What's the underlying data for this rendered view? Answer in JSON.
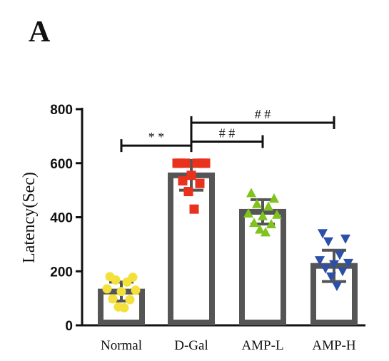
{
  "panel_label": "A",
  "chart_data": {
    "type": "bar",
    "ylabel": "Latency(Sec)",
    "xlabel": "",
    "ylim": [
      0,
      800
    ],
    "yticks": [
      0,
      200,
      400,
      600,
      800
    ],
    "categories": [
      "Normal",
      "D-Gal",
      "AMP-L",
      "AMP-H"
    ],
    "values": [
      125,
      555,
      420,
      220
    ],
    "sd": [
      35,
      55,
      45,
      58
    ],
    "point_colors": [
      "#f3e03a",
      "#e8321e",
      "#7fc31c",
      "#2c4fa8"
    ],
    "point_markers": [
      "circle",
      "square",
      "triangle-up",
      "triangle-down"
    ],
    "bar_color": "#555555",
    "points": [
      [
        180,
        178,
        168,
        160,
        135,
        130,
        125,
        98,
        95,
        68,
        65
      ],
      [
        600,
        600,
        600,
        600,
        600,
        600,
        555,
        535,
        525,
        495,
        430
      ],
      [
        490,
        470,
        450,
        440,
        415,
        410,
        405,
        380,
        375,
        355,
        345
      ],
      [
        340,
        320,
        310,
        260,
        240,
        230,
        225,
        210,
        200,
        180,
        145
      ]
    ],
    "significance": [
      {
        "text": "* *",
        "from": "Normal",
        "to": "D-Gal",
        "y": 665
      },
      {
        "text": "# #",
        "from": "D-Gal",
        "to": "AMP-L",
        "y": 680
      },
      {
        "text": "# #",
        "from": "D-Gal",
        "to": "AMP-H",
        "y": 750
      }
    ]
  }
}
